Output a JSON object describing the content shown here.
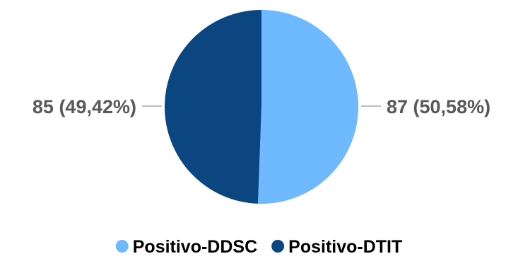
{
  "chart_data": {
    "type": "pie",
    "title": "",
    "series": [
      {
        "name": "",
        "slices": [
          {
            "label": "Positivo-DDSC",
            "value": 87,
            "percent": "50,58%",
            "data_label": "87 (50,58%)",
            "color": "#6FB9FF"
          },
          {
            "label": "Positivo-DTIT",
            "value": 85,
            "percent": "49,42%",
            "data_label": "85 (49,42%)",
            "color": "#0B4680"
          }
        ]
      }
    ],
    "legend": {
      "position": "bottom",
      "entries": [
        {
          "label": "Positivo-DDSC",
          "color": "#6FB9FF"
        },
        {
          "label": "Positivo-DTIT",
          "color": "#0B4680"
        }
      ]
    },
    "data_label_line_color": "#BFBFBF"
  }
}
